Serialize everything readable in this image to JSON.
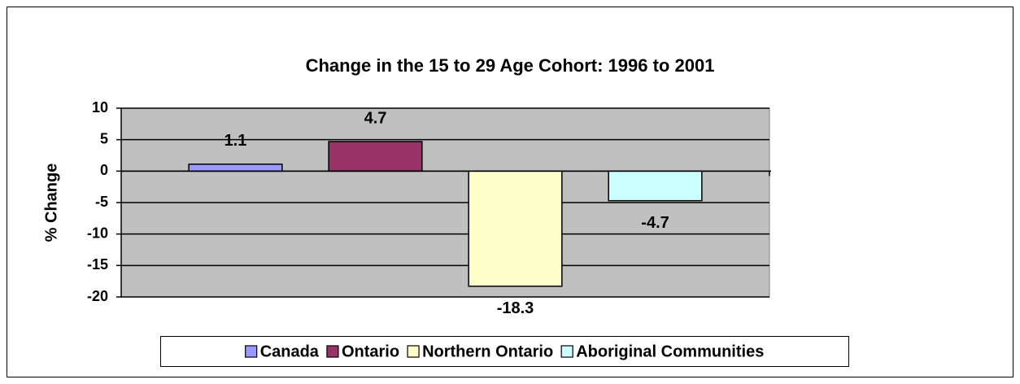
{
  "chart_data": {
    "type": "bar",
    "title": "Change in the 15 to 29 Age Cohort: 1996 to 2001",
    "y_label": "% Change",
    "categories": [
      null
    ],
    "series": [
      {
        "name": "Canada",
        "color": "#9999ff",
        "values": [
          1.1
        ]
      },
      {
        "name": "Ontario",
        "color": "#993366",
        "values": [
          4.7
        ]
      },
      {
        "name": "Northern Ontario",
        "color": "#ffffcc",
        "values": [
          -18.3
        ]
      },
      {
        "name": "Aboriginal Communities",
        "color": "#ccffff",
        "values": [
          -4.7
        ]
      }
    ],
    "ylim": [
      -20,
      10
    ],
    "yticks": [
      -20,
      -15,
      -10,
      -5,
      0,
      5,
      10
    ],
    "grid": true,
    "plot_background": "#c0c0c0",
    "legend": "bottom",
    "data_labels": true
  }
}
